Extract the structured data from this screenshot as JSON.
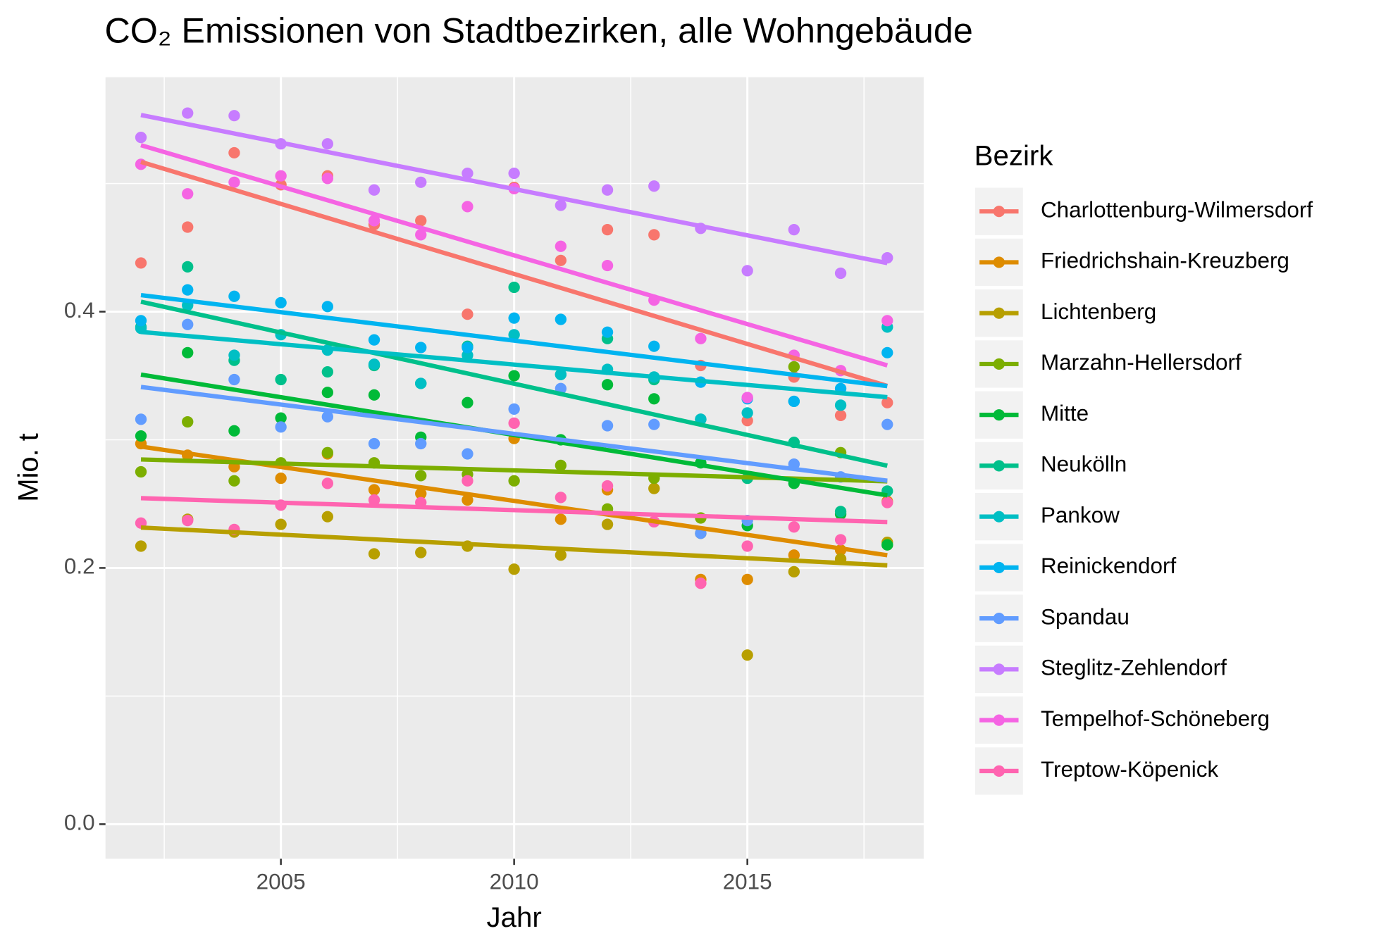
{
  "chart_data": {
    "type": "scatter",
    "title": "CO₂ Emissionen von Stadtbezirken, alle Wohngebäude",
    "x_label": "Jahr",
    "y_label": "Mio. t",
    "legend_title": "Bezirk",
    "smooth": "lm",
    "grid": true,
    "legend_position": "right",
    "xlim": [
      2001.24,
      2018.78
    ],
    "ylim": [
      -0.027,
      0.583
    ],
    "xticks": [
      2005,
      2010,
      2015
    ],
    "yticks": [
      {
        "value": 0,
        "label": "0.0"
      },
      0.2,
      0.4
    ],
    "x": [
      2002,
      2003,
      2004,
      2005,
      2006,
      2007,
      2008,
      2009,
      2010,
      2011,
      2012,
      2013,
      2014,
      2015,
      2016,
      2017,
      2018
    ],
    "series": [
      {
        "name": "Charlottenburg-Wilmersdorf",
        "color": "#F8766D",
        "values": [
          0.438,
          0.466,
          0.524,
          0.499,
          0.506,
          0.468,
          0.471,
          0.398,
          0.497,
          0.44,
          0.464,
          0.46,
          0.358,
          0.315,
          0.349,
          0.319,
          0.329
        ]
      },
      {
        "name": "Friedrichshain-Kreuzberg",
        "color": "#DE8C00",
        "values": [
          0.297,
          0.288,
          0.279,
          0.27,
          0.289,
          0.261,
          0.258,
          0.253,
          0.301,
          0.238,
          0.261,
          0.236,
          0.191,
          0.191,
          0.21,
          0.214,
          0.252
        ]
      },
      {
        "name": "Lichtenberg",
        "color": "#B79F00",
        "values": [
          0.217,
          0.238,
          0.228,
          0.234,
          0.24,
          0.211,
          0.212,
          0.217,
          0.199,
          0.21,
          0.234,
          0.262,
          0.227,
          0.132,
          0.197,
          0.207,
          0.22
        ]
      },
      {
        "name": "Marzahn-Hellersdorf",
        "color": "#7CAE00",
        "values": [
          0.275,
          0.314,
          0.268,
          0.282,
          0.29,
          0.282,
          0.272,
          0.273,
          0.268,
          0.28,
          0.246,
          0.27,
          0.239,
          0.27,
          0.357,
          0.29,
          0.218
        ]
      },
      {
        "name": "Mitte",
        "color": "#00BA38",
        "values": [
          0.303,
          0.368,
          0.307,
          0.317,
          0.337,
          0.335,
          0.302,
          0.329,
          0.35,
          0.3,
          0.343,
          0.332,
          0.282,
          0.233,
          0.266,
          0.242,
          0.218
        ]
      },
      {
        "name": "Neukölln",
        "color": "#00C08B",
        "values": [
          0.388,
          0.435,
          0.362,
          0.347,
          0.353,
          0.358,
          0.344,
          0.373,
          0.419,
          0.351,
          0.379,
          0.347,
          0.316,
          0.27,
          0.298,
          0.244,
          0.26
        ]
      },
      {
        "name": "Pankow",
        "color": "#00BFC4",
        "values": [
          0.387,
          0.405,
          0.366,
          0.382,
          0.37,
          0.359,
          0.344,
          0.366,
          0.382,
          0.351,
          0.355,
          0.349,
          0.316,
          0.321,
          0.33,
          0.327,
          0.388
        ]
      },
      {
        "name": "Reinickendorf",
        "color": "#00B4F0",
        "values": [
          0.393,
          0.417,
          0.412,
          0.407,
          0.404,
          0.378,
          0.372,
          0.372,
          0.395,
          0.394,
          0.384,
          0.373,
          0.345,
          0.332,
          0.33,
          0.34,
          0.368
        ]
      },
      {
        "name": "Spandau",
        "color": "#619CFF",
        "values": [
          0.316,
          0.39,
          0.347,
          0.31,
          0.318,
          0.297,
          0.297,
          0.289,
          0.324,
          0.34,
          0.311,
          0.312,
          0.227,
          0.237,
          0.281,
          0.271,
          0.312
        ]
      },
      {
        "name": "Steglitz-Zehlendorf",
        "color": "#C77CFF",
        "values": [
          0.536,
          0.555,
          0.553,
          0.531,
          0.531,
          0.495,
          0.501,
          0.508,
          0.508,
          0.483,
          0.495,
          0.498,
          0.465,
          0.432,
          0.464,
          0.43,
          0.442
        ]
      },
      {
        "name": "Tempelhof-Schöneberg",
        "color": "#F564E3",
        "values": [
          0.515,
          0.492,
          0.501,
          0.506,
          0.504,
          0.471,
          0.46,
          0.482,
          0.496,
          0.451,
          0.436,
          0.409,
          0.379,
          0.333,
          0.366,
          0.354,
          0.393
        ]
      },
      {
        "name": "Treptow-Köpenick",
        "color": "#FF64B0",
        "values": [
          0.235,
          0.237,
          0.23,
          0.249,
          0.266,
          0.253,
          0.251,
          0.268,
          0.313,
          0.255,
          0.264,
          0.236,
          0.188,
          0.217,
          0.232,
          0.222,
          0.251
        ]
      }
    ]
  }
}
